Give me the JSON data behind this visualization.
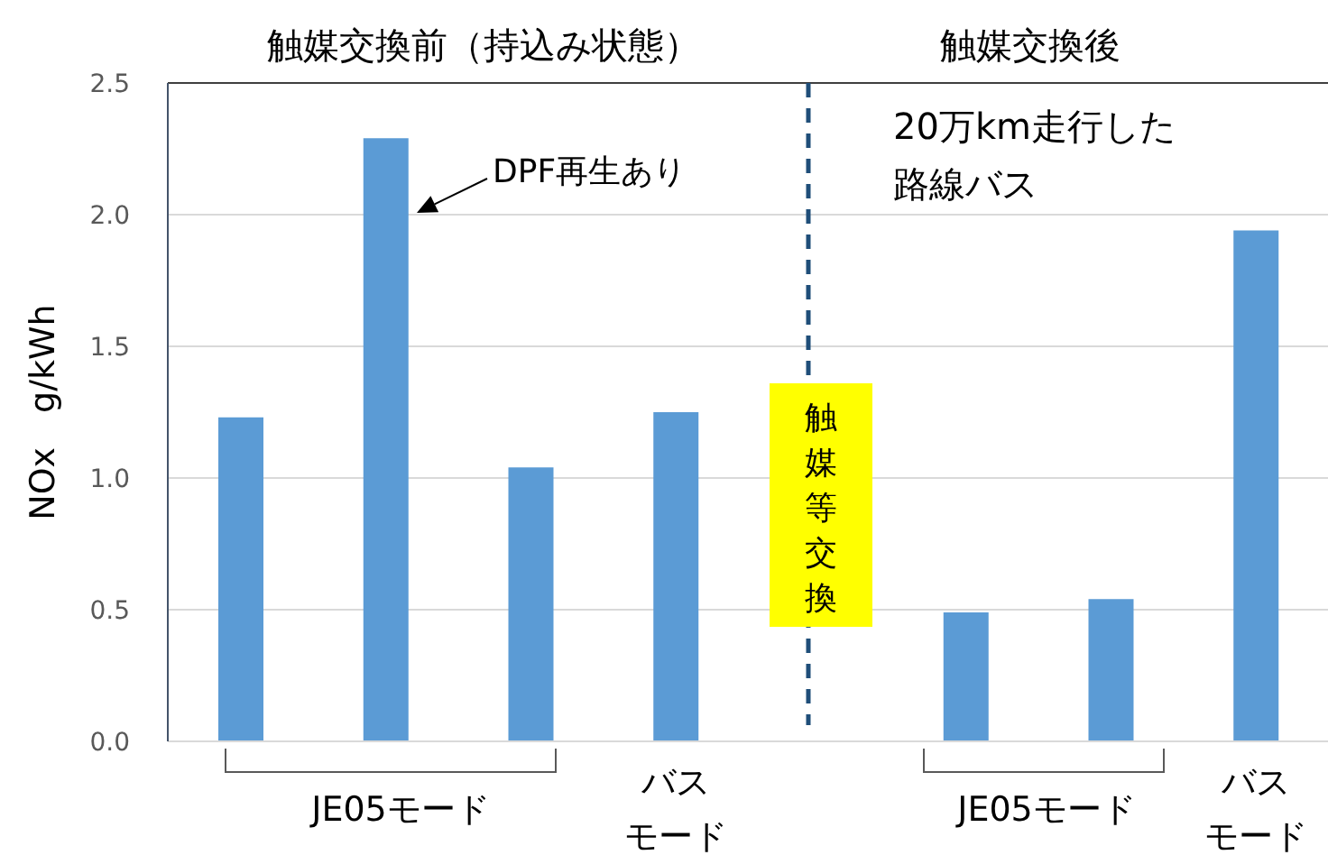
{
  "chart_data": {
    "type": "bar",
    "categories": [
      null,
      null,
      null,
      "バスモード",
      null,
      null,
      null,
      "バスモード"
    ],
    "values": [
      1.23,
      2.29,
      1.04,
      1.25,
      null,
      0.49,
      0.54,
      1.94
    ],
    "color": "#5b9bd5",
    "ylabel": "NOx　g/kWh",
    "ylim": [
      0,
      2.5
    ],
    "yticks": [
      {
        "value": 0,
        "label": "0.0"
      },
      {
        "value": 0.5,
        "label": "0.5"
      },
      {
        "value": 1,
        "label": "1.0"
      },
      {
        "value": 1.5,
        "label": "1.5"
      },
      {
        "value": 2,
        "label": "2.0"
      },
      {
        "value": 2.5,
        "label": "2.5"
      }
    ],
    "grid": "y",
    "annotations": [
      "触媒交換前（持込み状態）",
      "触媒交換後",
      "DPF再生あり",
      "20万km走行した路線バス",
      "JE05モード",
      "JE05モード",
      "触媒等交換"
    ]
  }
}
